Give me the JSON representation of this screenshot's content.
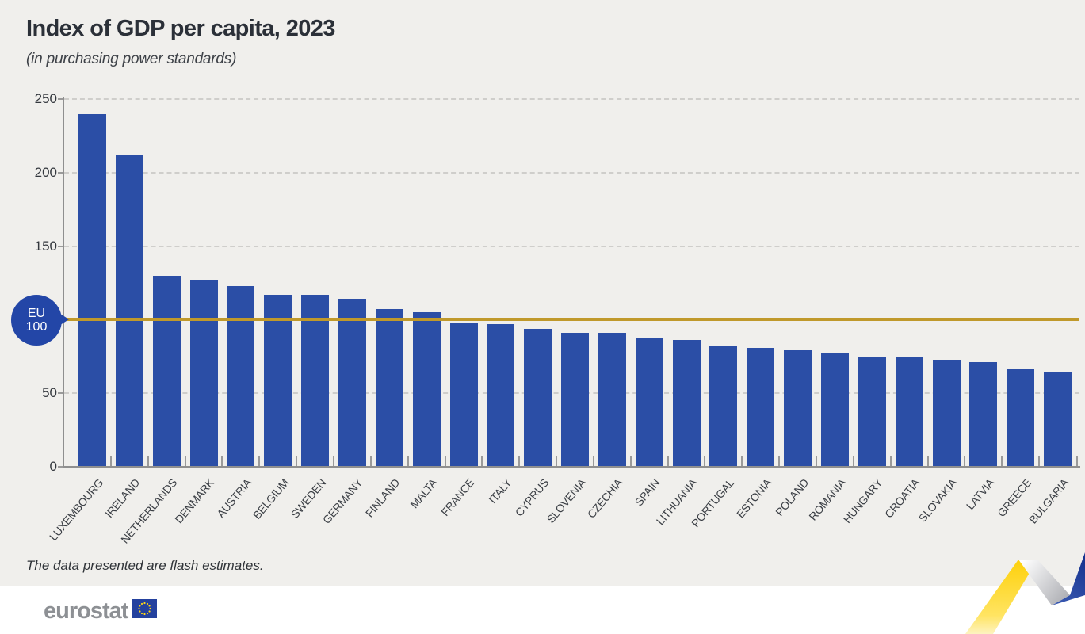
{
  "header": {
    "title": "Index of GDP per capita, 2023",
    "subtitle": "(in purchasing power standards)"
  },
  "footnote": "The data presented are flash estimates.",
  "logo": {
    "text": "eurostat",
    "flag_icon": "eu-flag-icon"
  },
  "eu_marker": {
    "line1": "EU",
    "line2": "100"
  },
  "colors": {
    "bar": "#2b4ea6",
    "badge": "#2346a7",
    "reference_line": "#c0992b",
    "background": "#f0efec",
    "footer_background": "#ffffff",
    "title_text": "#2b3038",
    "axis": "#8f8f8f",
    "gridline": "#cfcecb",
    "logo_gray": "#8d9094",
    "ribbon_yellow": "#fdd21b",
    "ribbon_blue": "#1c3fa5",
    "ribbon_gray": "#b4b5b9"
  },
  "chart_data": {
    "type": "bar",
    "title": "Index of GDP per capita, 2023",
    "subtitle": "(in purchasing power standards)",
    "categories": [
      "LUXEMBOURG",
      "IRELAND",
      "NETHERLANDS",
      "DENMARK",
      "AUSTRIA",
      "BELGIUM",
      "SWEDEN",
      "GERMANY",
      "FINLAND",
      "MALTA",
      "FRANCE",
      "ITALY",
      "CYPRUS",
      "SLOVENIA",
      "CZECHIA",
      "SPAIN",
      "LITHUANIA",
      "PORTUGAL",
      "ESTONIA",
      "POLAND",
      "ROMANIA",
      "HUNGARY",
      "CROATIA",
      "SLOVAKIA",
      "LATVIA",
      "GREECE",
      "BULGARIA"
    ],
    "values": [
      240,
      212,
      130,
      127,
      123,
      117,
      117,
      114,
      107,
      105,
      98,
      97,
      94,
      91,
      91,
      88,
      86,
      82,
      81,
      79,
      77,
      75,
      75,
      73,
      71,
      67,
      64
    ],
    "xlabel": "",
    "ylabel": "",
    "ylim": [
      0,
      250
    ],
    "yticks": [
      0,
      50,
      100,
      150,
      200,
      250
    ],
    "ytick_labels_shown": [
      "0",
      "50",
      "150",
      "200",
      "250"
    ],
    "grid": "horizontal-dashed",
    "legend": "none",
    "reference_line": {
      "value": 100,
      "label": "EU 100"
    }
  }
}
